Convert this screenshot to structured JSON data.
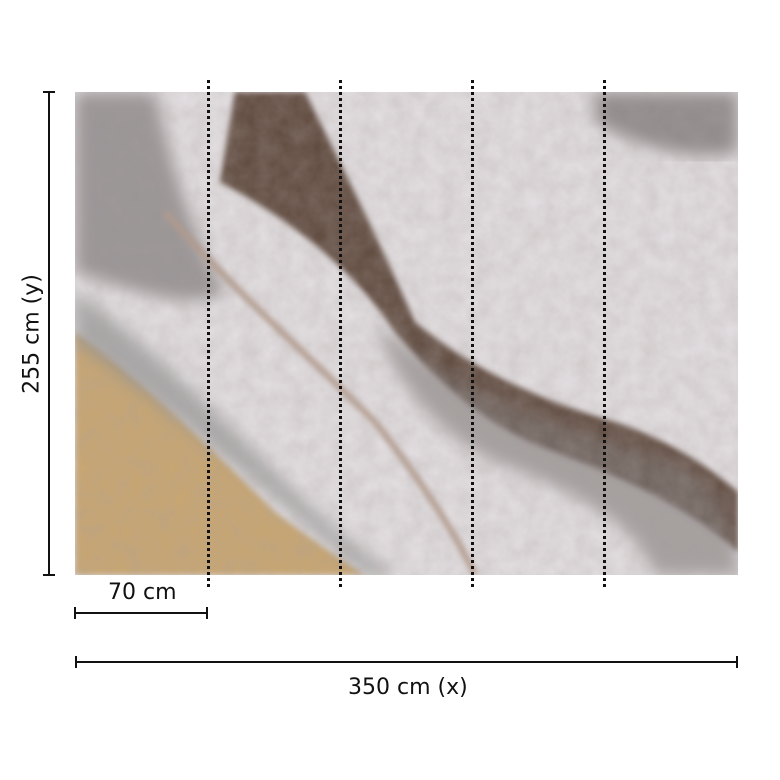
{
  "product": {
    "width_label": "350 cm (x)",
    "height_label": "255 cm (y)",
    "panel_width_label": "70 cm",
    "panel_count": 5,
    "pattern": "marble-onyx",
    "colors": {
      "base": "#e4e0e3",
      "vein_dark": "#5e4a3e",
      "grey": "#8a8587",
      "amber": "#c9a670",
      "dimension_line": "#111111"
    }
  }
}
